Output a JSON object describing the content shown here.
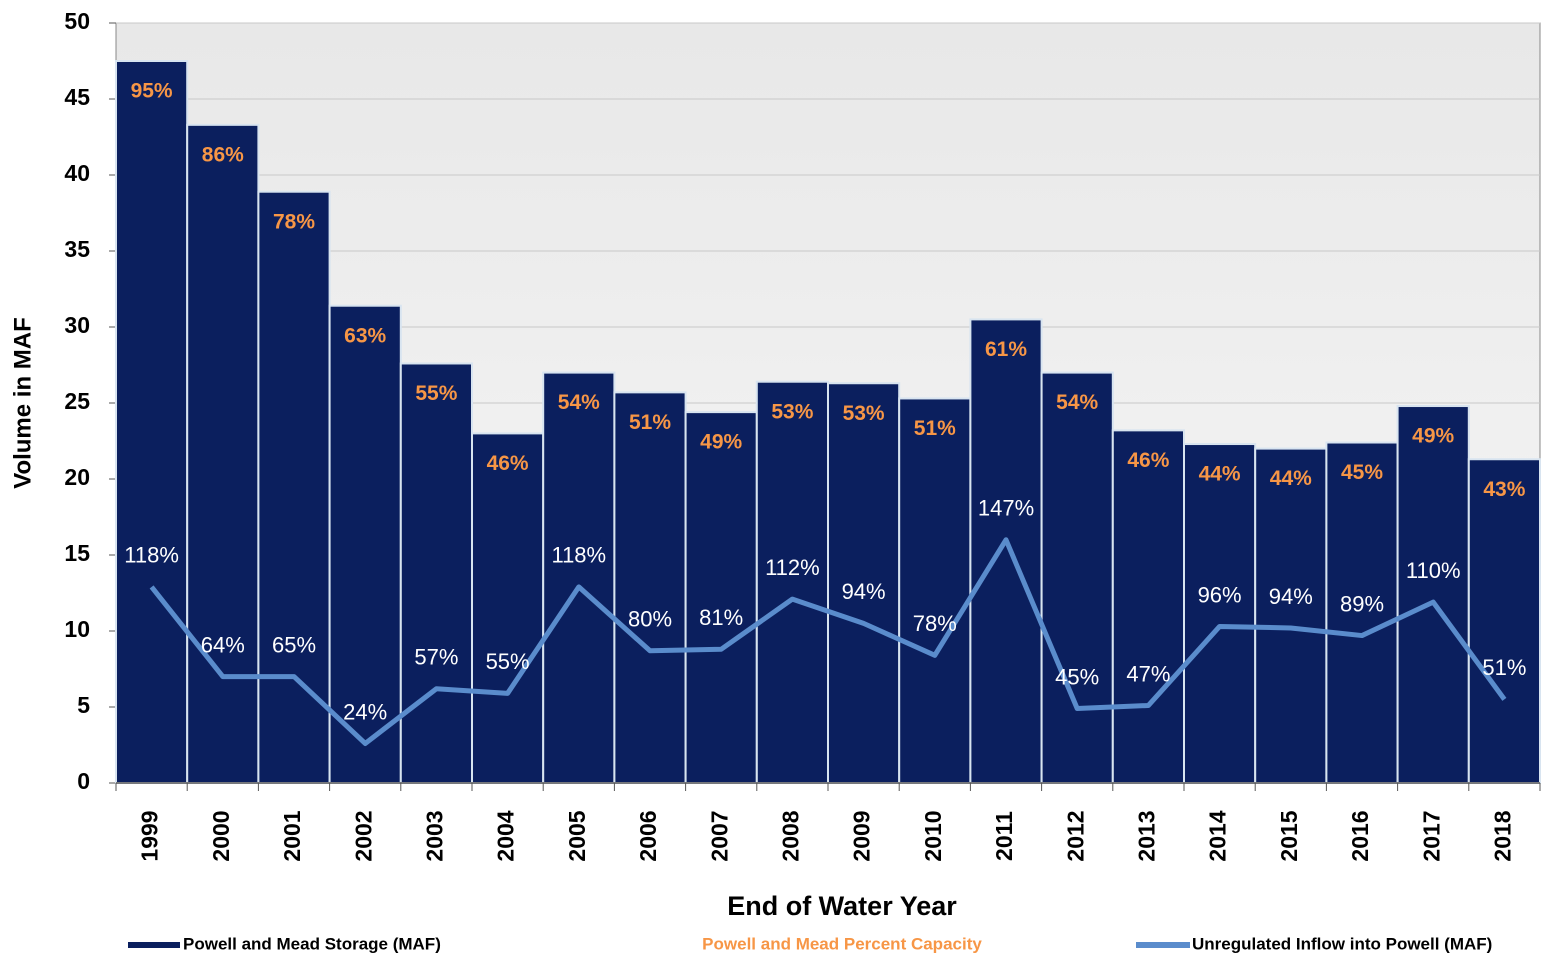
{
  "chart_data": {
    "type": "bar",
    "categories": [
      "1999",
      "2000",
      "2001",
      "2002",
      "2003",
      "2004",
      "2005",
      "2006",
      "2007",
      "2008",
      "2009",
      "2010",
      "2011",
      "2012",
      "2013",
      "2014",
      "2015",
      "2016",
      "2017",
      "2018"
    ],
    "series": [
      {
        "name": "Powell and Mead Storage (MAF)",
        "type": "bar",
        "color": "#0b1f5e",
        "values": [
          47.5,
          43.3,
          38.9,
          31.4,
          27.6,
          23.0,
          27.0,
          25.7,
          24.4,
          26.4,
          26.3,
          25.3,
          30.5,
          27.0,
          23.2,
          22.3,
          22.0,
          22.4,
          24.8,
          21.3
        ]
      },
      {
        "name": "Powell and Mead Percent Capacity",
        "type": "label",
        "color": "#f79646",
        "values": [
          95,
          86,
          78,
          63,
          55,
          46,
          54,
          51,
          49,
          53,
          53,
          51,
          61,
          54,
          46,
          44,
          44,
          45,
          49,
          43
        ],
        "value_labels": [
          "95%",
          "86%",
          "78%",
          "63%",
          "55%",
          "46%",
          "54%",
          "51%",
          "49%",
          "53%",
          "53%",
          "51%",
          "61%",
          "54%",
          "46%",
          "44%",
          "44%",
          "45%",
          "49%",
          "43%"
        ]
      },
      {
        "name": "Unregulated Inflow into Powell  (MAF)",
        "type": "line",
        "color": "#5a8ccc",
        "values": [
          12.9,
          7.0,
          7.0,
          2.6,
          6.2,
          5.9,
          12.9,
          8.7,
          8.8,
          12.1,
          10.5,
          8.4,
          16.0,
          4.9,
          5.1,
          10.3,
          10.2,
          9.7,
          11.9,
          5.5
        ],
        "percent": [
          118,
          64,
          65,
          24,
          57,
          55,
          118,
          80,
          81,
          112,
          94,
          78,
          147,
          45,
          47,
          96,
          94,
          89,
          110,
          51
        ],
        "percent_labels": [
          "118%",
          "64%",
          "65%",
          "24%",
          "57%",
          "55%",
          "118%",
          "80%",
          "81%",
          "112%",
          "94%",
          "78%",
          "147%",
          "45%",
          "47%",
          "96%",
          "94%",
          "89%",
          "110%",
          "51%"
        ]
      }
    ],
    "x_label": "End of Water Year",
    "y_label": "Volume in MAF",
    "ylim": [
      0,
      50
    ],
    "yticks": [
      0,
      5,
      10,
      15,
      20,
      25,
      30,
      35,
      40,
      45,
      50
    ],
    "grid": true
  }
}
